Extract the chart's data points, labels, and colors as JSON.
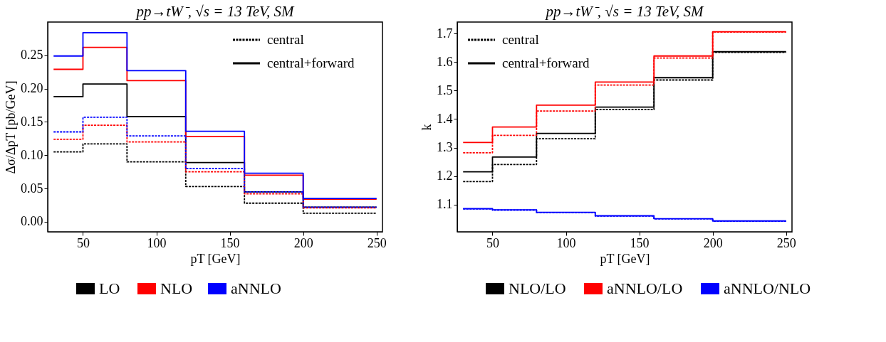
{
  "chart_data": [
    {
      "type": "step",
      "title": "pp→tW⁻, √s = 13 TeV, SM",
      "xlabel": "pT [GeV]",
      "ylabel": "Δσ/ΔpT [pb/GeV]",
      "x": [
        30,
        50,
        80,
        120,
        160,
        200,
        250
      ],
      "series": [
        {
          "color": "#000000",
          "line_style": "dashed",
          "values": [
            0.105,
            0.117,
            0.09,
            0.053,
            0.028,
            0.013,
            0.013
          ]
        },
        {
          "name": "LO",
          "color": "#000000",
          "line_style": "solid",
          "values": [
            0.188,
            0.207,
            0.158,
            0.089,
            0.045,
            0.022,
            0.022
          ]
        },
        {
          "color": "#ff0000",
          "line_style": "dashed",
          "values": [
            0.124,
            0.145,
            0.12,
            0.075,
            0.042,
            0.021,
            0.021
          ]
        },
        {
          "name": "NLO",
          "color": "#ff0000",
          "line_style": "solid",
          "values": [
            0.229,
            0.262,
            0.212,
            0.128,
            0.07,
            0.034,
            0.034
          ]
        },
        {
          "color": "#0000ff",
          "line_style": "dashed",
          "values": [
            0.135,
            0.157,
            0.129,
            0.08,
            0.045,
            0.022,
            0.022
          ]
        },
        {
          "name": "aNNLO",
          "color": "#0000ff",
          "line_style": "solid",
          "values": [
            0.249,
            0.284,
            0.227,
            0.136,
            0.073,
            0.035,
            0.035
          ]
        }
      ],
      "annotations": [
        "central",
        "central+forward"
      ],
      "xlim": [
        26,
        254
      ],
      "ylim": [
        -0.015,
        0.3
      ],
      "xticks": [
        50,
        100,
        150,
        200,
        250
      ],
      "yticks": [
        {
          "value": 0,
          "label": "0.00"
        },
        {
          "value": 0.05,
          "label": "0.05"
        },
        {
          "value": 0.1,
          "label": "0.10"
        },
        {
          "value": 0.15,
          "label": "0.15"
        },
        {
          "value": 0.2,
          "label": "0.20"
        },
        {
          "value": 0.25,
          "label": "0.25"
        }
      ],
      "grid": false,
      "legend": "bottom"
    },
    {
      "type": "step",
      "title": "pp→tW⁻, √s = 13 TeV, SM",
      "xlabel": "pT [GeV]",
      "ylabel": "k",
      "x": [
        30,
        50,
        80,
        120,
        160,
        200,
        250
      ],
      "series": [
        {
          "color": "#000000",
          "line_style": "dashed",
          "values": [
            1.181,
            1.241,
            1.331,
            1.433,
            1.537,
            1.634,
            1.634
          ]
        },
        {
          "name": "NLO/LO",
          "color": "#000000",
          "line_style": "solid",
          "values": [
            1.215,
            1.267,
            1.35,
            1.442,
            1.545,
            1.636,
            1.636
          ]
        },
        {
          "color": "#ff0000",
          "line_style": "dashed",
          "values": [
            1.282,
            1.343,
            1.428,
            1.519,
            1.614,
            1.705,
            1.705
          ]
        },
        {
          "name": "aNNLO/LO",
          "color": "#ff0000",
          "line_style": "solid",
          "values": [
            1.318,
            1.372,
            1.449,
            1.53,
            1.621,
            1.706,
            1.706
          ]
        },
        {
          "color": "#0000ff",
          "line_style": "dashed",
          "values": [
            1.085,
            1.081,
            1.072,
            1.06,
            1.05,
            1.042,
            1.042
          ]
        },
        {
          "name": "aNNLO/NLO",
          "color": "#0000ff",
          "line_style": "solid",
          "values": [
            1.086,
            1.082,
            1.073,
            1.061,
            1.051,
            1.043,
            1.043
          ]
        }
      ],
      "annotations": [
        "central",
        "central+forward"
      ],
      "xlim": [
        26,
        254
      ],
      "ylim": [
        1.005,
        1.74
      ],
      "xticks": [
        50,
        100,
        150,
        200,
        250
      ],
      "yticks": [
        1.1,
        1.2,
        1.3,
        1.4,
        1.5,
        1.6,
        1.7
      ],
      "grid": false,
      "legend": "bottom"
    }
  ]
}
